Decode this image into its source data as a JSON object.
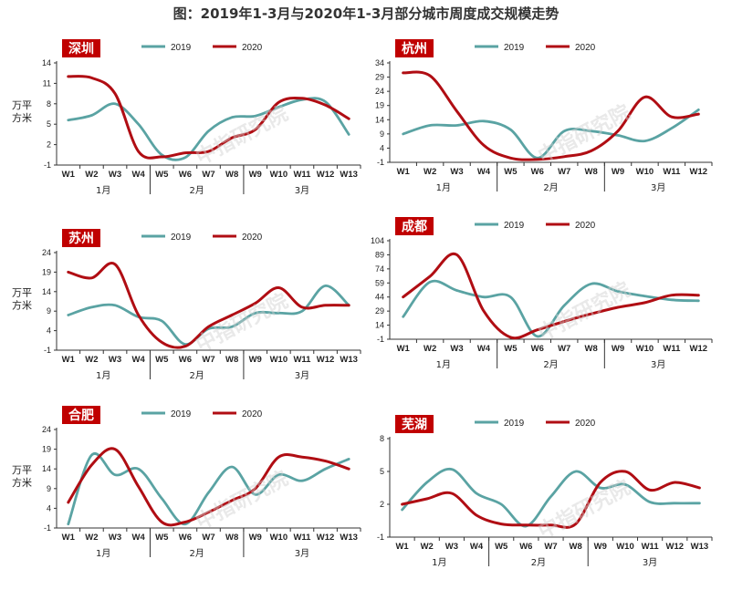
{
  "title": "图：2019年1-3月与2020年1-3月部分城市周度成交规模走势",
  "watermark": "中指研究院",
  "colors": {
    "2019": "#5aa3a3",
    "2020": "#b00d13",
    "label_bg": "#c00000",
    "axis": "#333333"
  },
  "chart_data": [
    {
      "type": "line",
      "city": "深圳",
      "ylabel": "万平方米",
      "legend_position": "top",
      "yticks": [
        -1,
        2,
        5,
        8,
        11,
        14
      ],
      "ylim": [
        -1,
        14
      ],
      "x": [
        "W1",
        "W2",
        "W3",
        "W4",
        "W5",
        "W6",
        "W7",
        "W8",
        "W9",
        "W10",
        "W11",
        "W12",
        "W13"
      ],
      "months": [
        {
          "label": "1月",
          "from": 0,
          "to": 3
        },
        {
          "label": "2月",
          "from": 4,
          "to": 7
        },
        {
          "label": "3月",
          "from": 8,
          "to": 12
        }
      ],
      "series": [
        {
          "name": "2019",
          "values": [
            5.6,
            6.3,
            8.0,
            5.0,
            0.5,
            0.1,
            4.0,
            6.0,
            6.2,
            7.5,
            8.6,
            8.3,
            3.5
          ]
        },
        {
          "name": "2020",
          "values": [
            12.0,
            11.8,
            9.5,
            1.0,
            0.2,
            0.8,
            1.0,
            3.0,
            4.2,
            8.2,
            8.8,
            7.8,
            5.8
          ]
        }
      ]
    },
    {
      "type": "line",
      "city": "杭州",
      "ylabel": "",
      "legend_position": "top",
      "yticks": [
        -1,
        4,
        9,
        14,
        19,
        24,
        29,
        34
      ],
      "ylim": [
        -1,
        34
      ],
      "x": [
        "W1",
        "W2",
        "W3",
        "W4",
        "W5",
        "W6",
        "W7",
        "W8",
        "W9",
        "W10",
        "W11",
        "W12"
      ],
      "months": [
        {
          "label": "1月",
          "from": 0,
          "to": 3
        },
        {
          "label": "2月",
          "from": 4,
          "to": 7
        },
        {
          "label": "3月",
          "from": 8,
          "to": 11
        }
      ],
      "series": [
        {
          "name": "2019",
          "values": [
            9.0,
            12.0,
            12.0,
            13.5,
            10.5,
            0.5,
            10.0,
            10.0,
            8.5,
            6.5,
            11.0,
            17.5
          ]
        },
        {
          "name": "2020",
          "values": [
            30.5,
            29.5,
            17.0,
            5.0,
            0.5,
            0.0,
            1.0,
            3.0,
            10.0,
            22.0,
            15.0,
            16.0
          ]
        }
      ]
    },
    {
      "type": "line",
      "city": "苏州",
      "ylabel": "万平方米",
      "legend_position": "top",
      "yticks": [
        -1,
        4,
        9,
        14,
        19,
        24
      ],
      "ylim": [
        -1,
        24
      ],
      "x": [
        "W1",
        "W2",
        "W3",
        "W4",
        "W5",
        "W6",
        "W7",
        "W8",
        "W9",
        "W10",
        "W11",
        "W12",
        "W13"
      ],
      "months": [
        {
          "label": "1月",
          "from": 0,
          "to": 3
        },
        {
          "label": "2月",
          "from": 4,
          "to": 7
        },
        {
          "label": "3月",
          "from": 8,
          "to": 12
        }
      ],
      "series": [
        {
          "name": "2019",
          "values": [
            8.0,
            10.0,
            10.5,
            7.5,
            6.5,
            0.5,
            4.5,
            5.0,
            8.5,
            8.5,
            9.0,
            15.5,
            10.5
          ]
        },
        {
          "name": "2020",
          "values": [
            19.0,
            17.5,
            21.0,
            8.0,
            1.0,
            0.0,
            5.0,
            8.0,
            11.0,
            15.0,
            10.0,
            10.5,
            10.5
          ]
        }
      ]
    },
    {
      "type": "line",
      "city": "成都",
      "ylabel": "",
      "legend_position": "top",
      "yticks": [
        -1,
        14,
        29,
        44,
        59,
        74,
        89,
        104
      ],
      "ylim": [
        -1,
        104
      ],
      "x": [
        "W1",
        "W2",
        "W3",
        "W4",
        "W5",
        "W6",
        "W7",
        "W8",
        "W9",
        "W10",
        "W11",
        "W12"
      ],
      "months": [
        {
          "label": "1月",
          "from": 0,
          "to": 3
        },
        {
          "label": "2月",
          "from": 4,
          "to": 7
        },
        {
          "label": "3月",
          "from": 8,
          "to": 11
        }
      ],
      "series": [
        {
          "name": "2019",
          "values": [
            23,
            60,
            51,
            44,
            44,
            2,
            35,
            58,
            50,
            45,
            41,
            40
          ]
        },
        {
          "name": "2020",
          "values": [
            44,
            66,
            89,
            29,
            1,
            9,
            18,
            26,
            33,
            38,
            46,
            46
          ]
        }
      ]
    },
    {
      "type": "line",
      "city": "合肥",
      "ylabel": "万平方米",
      "legend_position": "top",
      "yticks": [
        -1,
        4,
        9,
        14,
        19,
        24
      ],
      "ylim": [
        -1,
        24
      ],
      "x": [
        "W1",
        "W2",
        "W3",
        "W4",
        "W5",
        "W6",
        "W7",
        "W8",
        "W9",
        "W10",
        "W11",
        "W12",
        "W13"
      ],
      "months": [
        {
          "label": "1月",
          "from": 0,
          "to": 3
        },
        {
          "label": "2月",
          "from": 4,
          "to": 7
        },
        {
          "label": "3月",
          "from": 8,
          "to": 12
        }
      ],
      "series": [
        {
          "name": "2019",
          "values": [
            0.0,
            17.5,
            12.5,
            14.0,
            6.5,
            0.0,
            8.0,
            14.5,
            7.5,
            12.5,
            11.0,
            14.0,
            16.5
          ]
        },
        {
          "name": "2020",
          "values": [
            5.5,
            15.0,
            19.0,
            9.5,
            0.5,
            0.5,
            3.0,
            6.0,
            9.0,
            17.0,
            17.0,
            16.0,
            14.0
          ]
        }
      ]
    },
    {
      "type": "line",
      "city": "芜湖",
      "ylabel": "",
      "legend_position": "top",
      "yticks": [
        -1,
        2,
        5,
        8
      ],
      "ylim": [
        -1,
        8
      ],
      "x": [
        "W1",
        "W2",
        "W3",
        "W4",
        "W5",
        "W6",
        "W7",
        "W8",
        "W9",
        "W10",
        "W11",
        "W12",
        "W13"
      ],
      "months": [
        {
          "label": "1月",
          "from": 0,
          "to": 3
        },
        {
          "label": "2月",
          "from": 4,
          "to": 7
        },
        {
          "label": "3月",
          "from": 8,
          "to": 12
        }
      ],
      "series": [
        {
          "name": "2019",
          "values": [
            1.5,
            4.0,
            5.2,
            3.0,
            2.0,
            0.0,
            2.7,
            5.0,
            3.5,
            3.8,
            2.2,
            2.1,
            2.1
          ]
        },
        {
          "name": "2020",
          "values": [
            2.0,
            2.5,
            3.0,
            1.0,
            0.2,
            0.1,
            0.1,
            0.2,
            4.0,
            5.0,
            3.3,
            4.0,
            3.5
          ]
        }
      ]
    }
  ]
}
